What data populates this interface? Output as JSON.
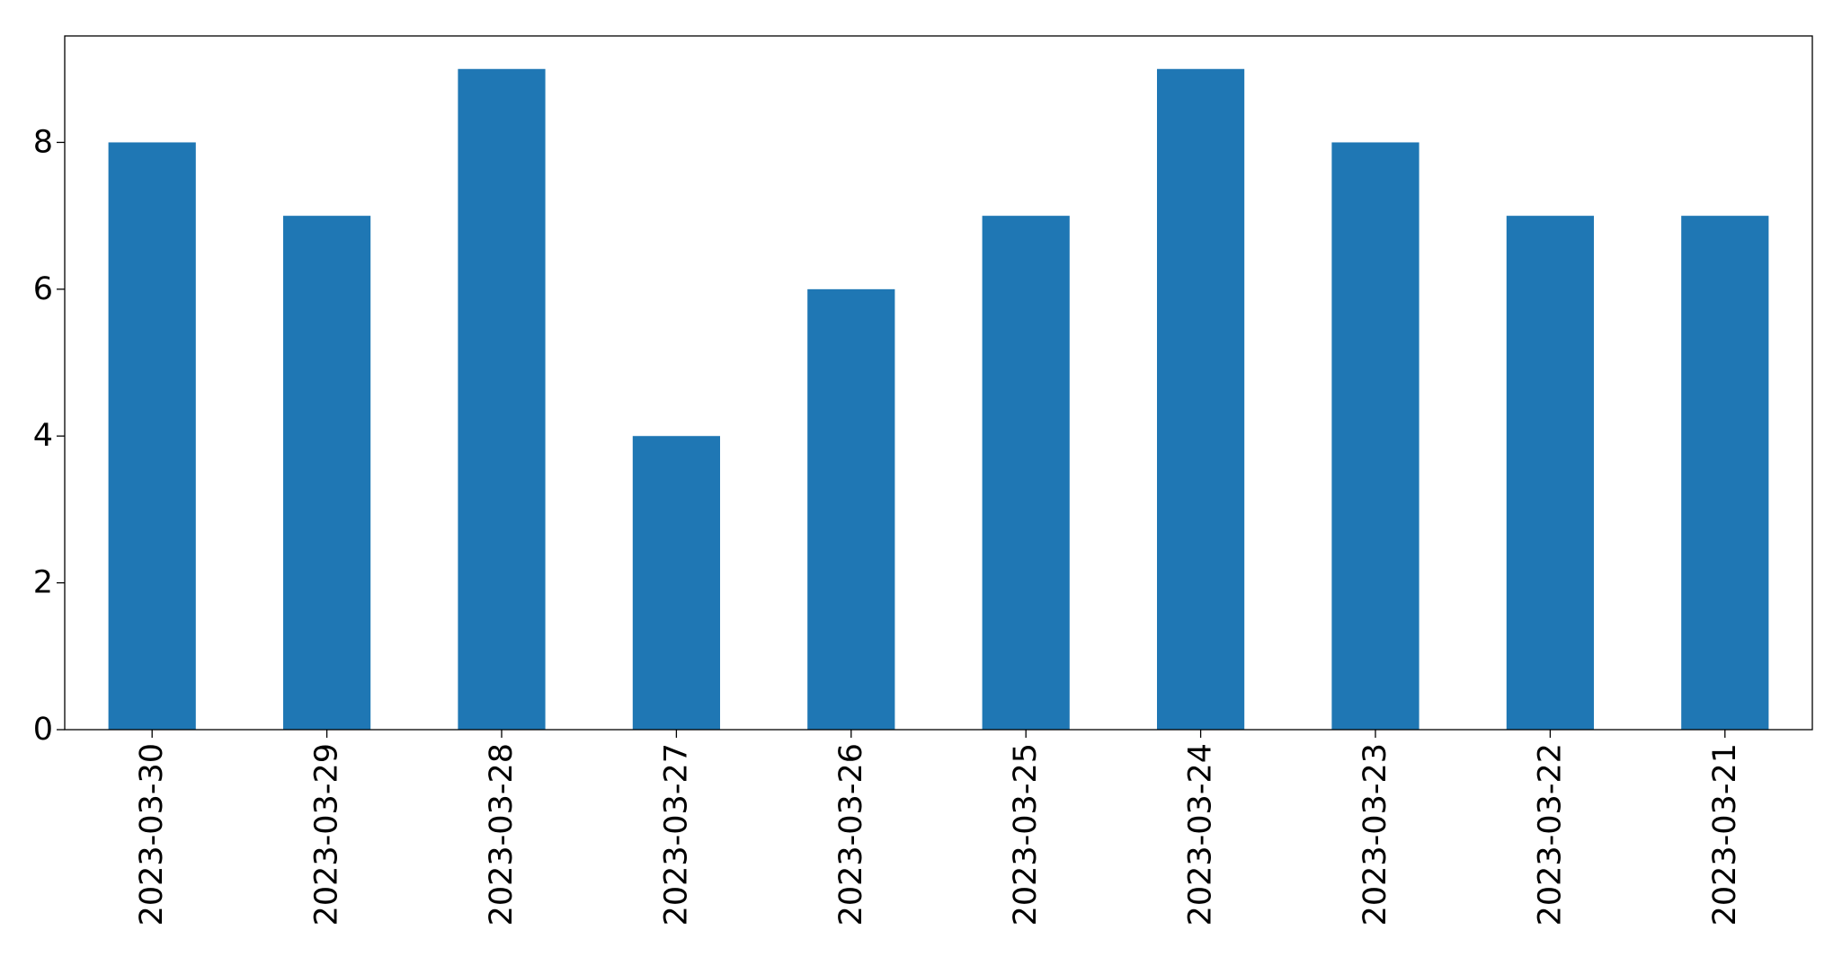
{
  "chart_data": {
    "type": "bar",
    "title": "",
    "xlabel": "",
    "ylabel": "",
    "categories": [
      "2023-03-30",
      "2023-03-29",
      "2023-03-28",
      "2023-03-27",
      "2023-03-26",
      "2023-03-25",
      "2023-03-24",
      "2023-03-23",
      "2023-03-22",
      "2023-03-21"
    ],
    "values": [
      8,
      7,
      9,
      4,
      6,
      7,
      9,
      8,
      7,
      7
    ],
    "ylim": [
      0,
      9.45
    ],
    "yticks": [
      0,
      2,
      4,
      6,
      8
    ],
    "ytick_labels": [
      "0",
      "2",
      "4",
      "6",
      "8"
    ],
    "bar_color": "#1f77b4",
    "grid": false,
    "legend": "none"
  }
}
